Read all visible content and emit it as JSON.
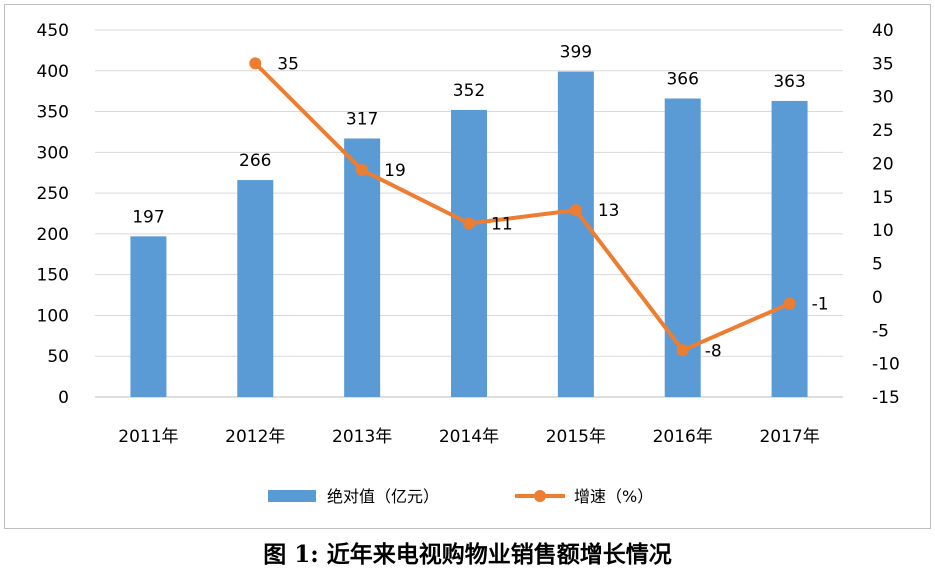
{
  "caption": "图 1: 近年来电视购物业销售额增长情况",
  "chart_data": {
    "type": "bar",
    "categories": [
      "2011年",
      "2012年",
      "2013年",
      "2014年",
      "2015年",
      "2016年",
      "2017年"
    ],
    "series": [
      {
        "name": "绝对值（亿元）",
        "type": "bar",
        "axis": "left",
        "values": [
          197,
          266,
          317,
          352,
          399,
          366,
          363
        ],
        "color": "#5b9bd5"
      },
      {
        "name": "增速（%）",
        "type": "line",
        "axis": "right",
        "values": [
          null,
          35,
          19,
          11,
          13,
          -8,
          -1
        ],
        "color": "#ed7d31"
      }
    ],
    "y_left": {
      "min": 0,
      "max": 450,
      "step": 50
    },
    "y_right": {
      "min": -15,
      "max": 40,
      "step": 5
    },
    "grid": true,
    "legend_position": "bottom",
    "data_labels": true
  }
}
